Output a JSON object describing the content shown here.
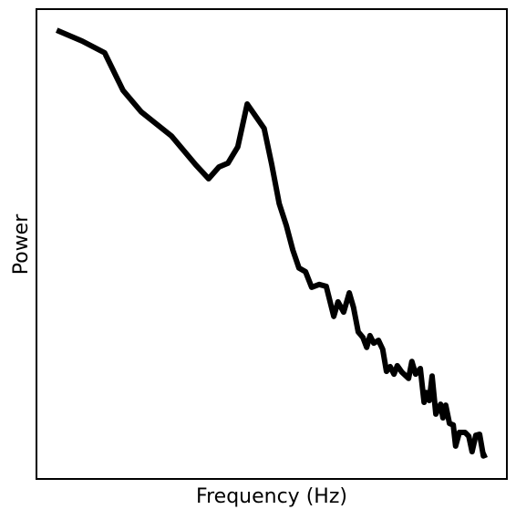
{
  "chart_data": {
    "type": "line",
    "xlabel": "Frequency (Hz)",
    "ylabel": "Power",
    "x": [
      4.3,
      9.7,
      14.5,
      18.4,
      22.3,
      28.7,
      33.9,
      36.6,
      38.8,
      40.7,
      42.8,
      44.8,
      48.4,
      50.0,
      51.6,
      53.1,
      54.5,
      55.8,
      57.2,
      58.5,
      60.1,
      61.6,
      63.2,
      64.1,
      65.3,
      66.5,
      67.4,
      68.4,
      69.4,
      70.2,
      70.9,
      71.7,
      72.7,
      73.6,
      74.4,
      75.2,
      76.0,
      76.7,
      77.7,
      79.1,
      79.8,
      80.6,
      81.6,
      82.4,
      82.9,
      83.5,
      84.1,
      84.9,
      85.9,
      86.4,
      87.0,
      87.8,
      88.6,
      89.1,
      89.9,
      91.1,
      91.9,
      92.6,
      93.4,
      94.2,
      95.0,
      95.7
    ],
    "series": [
      {
        "color": "#000000",
        "values": [
          95.5,
          93.2,
          90.7,
          82.7,
          78.1,
          73.0,
          66.8,
          63.9,
          66.4,
          67.2,
          70.7,
          79.8,
          74.6,
          67.0,
          58.6,
          54.0,
          48.7,
          44.9,
          44.1,
          40.8,
          41.4,
          41.0,
          34.6,
          37.7,
          35.5,
          39.6,
          36.5,
          31.3,
          30.1,
          28.0,
          30.5,
          28.9,
          29.5,
          27.6,
          22.9,
          23.9,
          22.3,
          24.1,
          22.7,
          21.4,
          25.0,
          22.3,
          23.5,
          16.3,
          18.4,
          16.7,
          21.9,
          13.8,
          15.9,
          13.0,
          15.7,
          11.8,
          11.5,
          7.0,
          9.9,
          9.9,
          9.1,
          5.8,
          9.3,
          9.5,
          4.9,
          5.2
        ]
      }
    ],
    "xlim": [
      0,
      100
    ],
    "ylim": [
      0,
      100
    ]
  }
}
